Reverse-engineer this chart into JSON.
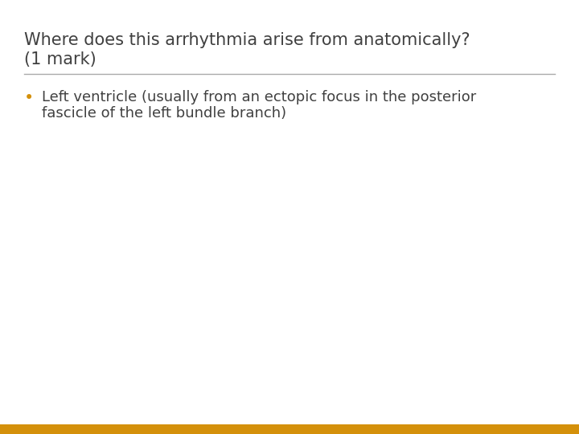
{
  "title_line1": "Where does this arrhythmia arise from anatomically?",
  "title_line2": "(1 mark)",
  "title_color": "#404040",
  "title_fontsize": 15,
  "divider_color": "#aaaaaa",
  "bullet_color": "#D4900A",
  "bullet_text_line1": "Left ventricle (usually from an ectopic focus in the posterior",
  "bullet_text_line2": "fascicle of the left bundle branch)",
  "bullet_fontsize": 13,
  "background_color": "#ffffff",
  "bottom_bar_color": "#D4900A",
  "text_color": "#404040",
  "bottom_bar_height": 0.018
}
